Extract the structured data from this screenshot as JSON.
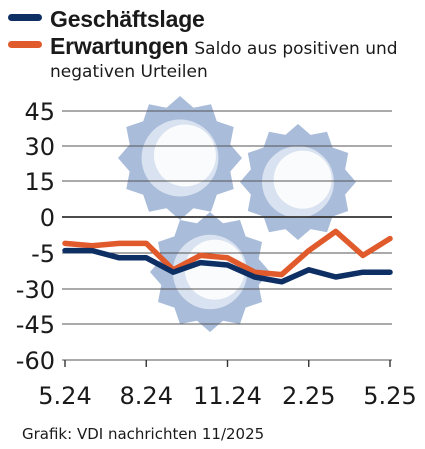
{
  "chart_data": {
    "type": "line",
    "x": [
      "5.24",
      "6.24",
      "7.24",
      "8.24",
      "9.24",
      "10.24",
      "11.24",
      "12.24",
      "1.25",
      "2.25",
      "3.25",
      "4.25",
      "5.25"
    ],
    "xticks": [
      "5.24",
      "8.24",
      "11.24",
      "2.25",
      "5.25"
    ],
    "yticks": [
      "45",
      "30",
      "15",
      "0",
      "-5",
      "-30",
      "-45",
      "-60"
    ],
    "ylim": [
      -60,
      45
    ],
    "grid": true,
    "legend": "top-left",
    "series": [
      {
        "name": "Geschäftslage",
        "color": "#0d2f63",
        "values": [
          -14,
          -14,
          -17,
          -17,
          -23,
          -19,
          -20,
          -25,
          -27,
          -22,
          -25,
          -23,
          -23
        ]
      },
      {
        "name": "Erwartungen",
        "color": "#e05a2b",
        "values": [
          -11,
          -12,
          -11,
          -11,
          -22,
          -16,
          -17,
          -23,
          -24,
          -14,
          -6,
          -16,
          -9
        ]
      }
    ],
    "subtitle_lines": [
      "Saldo aus positiven und",
      "negativen Urteilen"
    ]
  },
  "source": "Grafik: VDI nachrichten 11/2025"
}
